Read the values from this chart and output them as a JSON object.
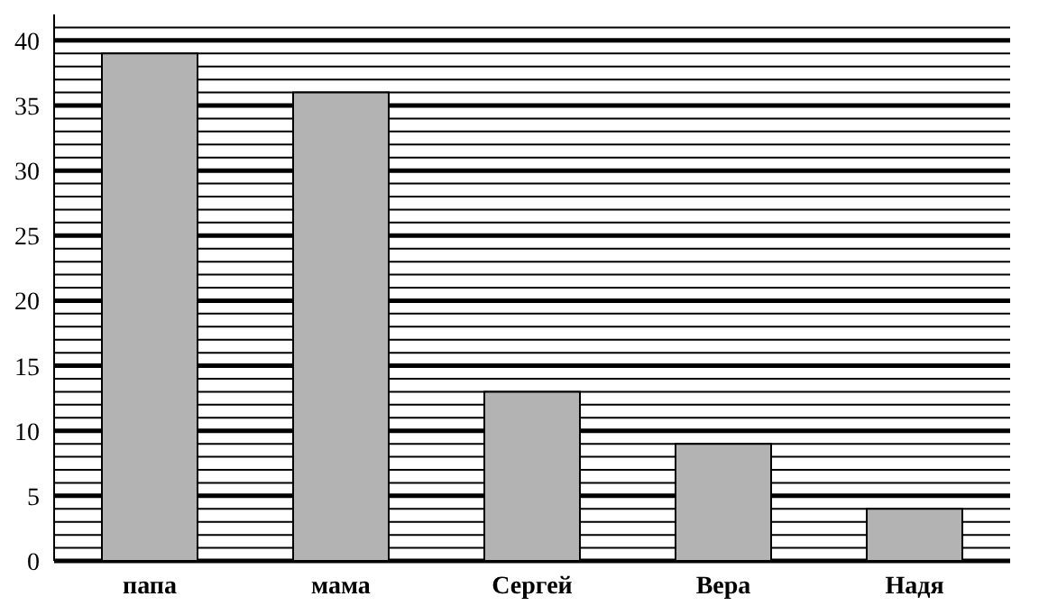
{
  "chart_data": {
    "type": "bar",
    "categories": [
      "папа",
      "мама",
      "Сергей",
      "Вера",
      "Надя"
    ],
    "values": [
      39,
      36,
      13,
      9,
      4
    ],
    "color": "#b3b3b3",
    "ylim": [
      0,
      42
    ],
    "yticks": [
      0,
      {
        "value": 1,
        "label": null
      },
      {
        "value": 2,
        "label": null
      },
      {
        "value": 3,
        "label": null
      },
      {
        "value": 4,
        "label": null
      },
      5,
      {
        "value": 6,
        "label": null
      },
      {
        "value": 7,
        "label": null
      },
      {
        "value": 8,
        "label": null
      },
      {
        "value": 9,
        "label": null
      },
      10,
      {
        "value": 11,
        "label": null
      },
      {
        "value": 12,
        "label": null
      },
      {
        "value": 13,
        "label": null
      },
      {
        "value": 14,
        "label": null
      },
      15,
      {
        "value": 16,
        "label": null
      },
      {
        "value": 17,
        "label": null
      },
      {
        "value": 18,
        "label": null
      },
      {
        "value": 19,
        "label": null
      },
      20,
      {
        "value": 21,
        "label": null
      },
      {
        "value": 22,
        "label": null
      },
      {
        "value": 23,
        "label": null
      },
      {
        "value": 24,
        "label": null
      },
      25,
      {
        "value": 26,
        "label": null
      },
      {
        "value": 27,
        "label": null
      },
      {
        "value": 28,
        "label": null
      },
      {
        "value": 29,
        "label": null
      },
      30,
      {
        "value": 31,
        "label": null
      },
      {
        "value": 32,
        "label": null
      },
      {
        "value": 33,
        "label": null
      },
      {
        "value": 34,
        "label": null
      },
      35,
      {
        "value": 36,
        "label": null
      },
      {
        "value": 37,
        "label": null
      },
      {
        "value": 38,
        "label": null
      },
      {
        "value": 39,
        "label": null
      },
      40,
      {
        "value": 41,
        "label": null
      }
    ],
    "grid": "y",
    "legend": false
  }
}
